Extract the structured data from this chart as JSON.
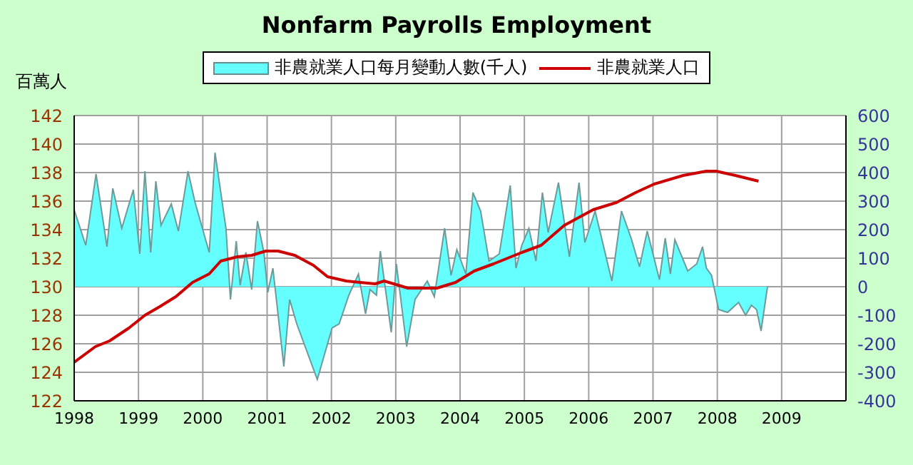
{
  "chart_data": {
    "type": "area",
    "title": "Nonfarm Payrolls Employment",
    "ylabel": "百萬人",
    "xlim": [
      1998,
      2010
    ],
    "xticks": [
      1998,
      1999,
      2000,
      2001,
      2002,
      2003,
      2004,
      2005,
      2006,
      2007,
      2008,
      2009
    ],
    "ylim": [
      122,
      142
    ],
    "yticks": [
      122,
      124,
      126,
      128,
      130,
      132,
      134,
      136,
      138,
      140,
      142
    ],
    "y2lim": [
      -400,
      600
    ],
    "y2ticks": [
      -400,
      -300,
      -200,
      -100,
      0,
      100,
      200,
      300,
      400,
      500,
      600
    ],
    "grid": true,
    "legend": "top",
    "series": [
      {
        "name": "非農就業人口每月變動人數(千人)",
        "axis": "y2",
        "color": "#66ffff",
        "x": [
          1998.0,
          1998.18,
          1998.34,
          1998.51,
          1998.6,
          1998.74,
          1998.92,
          1999.02,
          1999.1,
          1999.19,
          1999.27,
          1999.35,
          1999.51,
          1999.62,
          1999.77,
          1999.88,
          2000.1,
          2000.19,
          2000.36,
          2000.43,
          2000.52,
          2000.58,
          2000.67,
          2000.76,
          2000.85,
          2000.95,
          2001.01,
          2001.09,
          2001.26,
          2001.35,
          2001.46,
          2001.78,
          2002.01,
          2002.12,
          2002.27,
          2002.42,
          2002.53,
          2002.6,
          2002.7,
          2002.76,
          2002.93,
          2003.01,
          2003.17,
          2003.3,
          2003.49,
          2003.6,
          2003.76,
          2003.86,
          2003.95,
          2004.09,
          2004.2,
          2004.32,
          2004.45,
          2004.61,
          2004.78,
          2004.87,
          2004.96,
          2005.07,
          2005.18,
          2005.28,
          2005.37,
          2005.53,
          2005.7,
          2005.85,
          2005.94,
          2006.1,
          2006.36,
          2006.51,
          2006.66,
          2006.79,
          2006.91,
          2007.1,
          2007.19,
          2007.27,
          2007.34,
          2007.54,
          2007.68,
          2007.77,
          2007.83,
          2007.91,
          2008.02,
          2008.16,
          2008.33,
          2008.44,
          2008.53,
          2008.61,
          2008.68,
          2008.78
        ],
        "values": [
          270,
          145,
          395,
          140,
          345,
          205,
          340,
          115,
          405,
          120,
          370,
          215,
          290,
          195,
          405,
          295,
          120,
          470,
          205,
          -45,
          160,
          5,
          120,
          -10,
          230,
          120,
          -20,
          65,
          -280,
          -45,
          -130,
          -325,
          -145,
          -130,
          -30,
          45,
          -95,
          -10,
          -30,
          125,
          -160,
          80,
          -210,
          -45,
          20,
          -35,
          205,
          40,
          130,
          45,
          330,
          265,
          90,
          115,
          355,
          65,
          145,
          205,
          90,
          330,
          190,
          365,
          105,
          365,
          155,
          265,
          20,
          265,
          170,
          70,
          195,
          25,
          170,
          45,
          165,
          55,
          80,
          140,
          65,
          40,
          -80,
          -90,
          -55,
          -100,
          -65,
          -80,
          -155,
          0
        ]
      },
      {
        "name": "非農就業人口",
        "type": "line",
        "color": "#cc0000",
        "x": [
          1998.0,
          1998.33,
          1998.55,
          1998.85,
          1999.1,
          1999.33,
          1999.58,
          1999.84,
          2000.1,
          2000.28,
          2000.54,
          2000.76,
          2000.98,
          2001.17,
          2001.43,
          2001.72,
          2001.94,
          2002.23,
          2002.68,
          2002.82,
          2003.19,
          2003.64,
          2003.93,
          2004.22,
          2004.52,
          2004.96,
          2005.26,
          2005.62,
          2006.07,
          2006.43,
          2006.73,
          2007.02,
          2007.47,
          2007.83,
          2007.98,
          2008.28,
          2008.64
        ],
        "values": [
          124.7,
          125.8,
          126.2,
          127.1,
          128.0,
          128.6,
          129.3,
          130.3,
          130.9,
          131.8,
          132.1,
          132.2,
          132.5,
          132.5,
          132.2,
          131.5,
          130.7,
          130.4,
          130.2,
          130.4,
          129.9,
          129.9,
          130.3,
          131.1,
          131.6,
          132.4,
          132.9,
          134.3,
          135.4,
          135.9,
          136.6,
          137.2,
          137.8,
          138.1,
          138.1,
          137.8,
          137.4
        ]
      }
    ]
  }
}
